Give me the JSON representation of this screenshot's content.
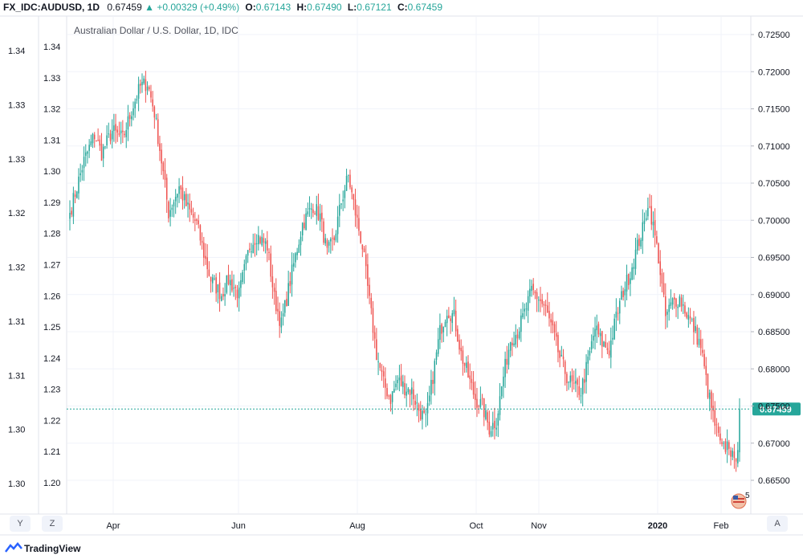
{
  "header": {
    "symbol": "FX_IDC:AUDUSD, 1D",
    "price": "0.67459",
    "change": "+0.00329 (+0.49%)",
    "open_label": "O:",
    "open": "0.67143",
    "high_label": "H:",
    "high": "0.67490",
    "low_label": "L:",
    "low": "0.67121",
    "close_label": "C:",
    "close": "0.67459"
  },
  "footer": {
    "brand": "TradingView",
    "y_button": "Y",
    "z_button": "Z",
    "a_button": "A",
    "flag_badge": "5"
  },
  "colors": {
    "up": "#26a69a",
    "down": "#ef5350",
    "price_line": "#26a69a"
  },
  "chart_data": {
    "type": "candlestick",
    "title": "Australian Dollar / U.S. Dollar, 1D, IDC",
    "last_price_label": "0.67459",
    "y_right": {
      "ticks": [
        "0.72500",
        "0.72000",
        "0.71500",
        "0.71000",
        "0.70500",
        "0.70000",
        "0.69500",
        "0.69000",
        "0.68500",
        "0.68000",
        "0.67500",
        "0.67000",
        "0.66500"
      ],
      "range": [
        0.6613,
        0.7265
      ]
    },
    "y_left_outer": {
      "ticks": [
        "1.34",
        "1.33",
        "1.33",
        "1.32",
        "1.32",
        "1.31",
        "1.31",
        "1.30",
        "1.30"
      ]
    },
    "y_left_inner": {
      "ticks": [
        "1.34",
        "1.33",
        "1.32",
        "1.31",
        "1.30",
        "1.29",
        "1.28",
        "1.27",
        "1.26",
        "1.25",
        "1.24",
        "1.23",
        "1.22",
        "1.21",
        "1.20"
      ]
    },
    "x_labels": [
      "Apr",
      "Jun",
      "Aug",
      "Oct",
      "Nov",
      "2020",
      "Feb"
    ],
    "key_points": [
      [
        0,
        0.701
      ],
      [
        8,
        0.708
      ],
      [
        14,
        0.7115
      ],
      [
        18,
        0.709
      ],
      [
        24,
        0.712
      ],
      [
        30,
        0.711
      ],
      [
        36,
        0.7155
      ],
      [
        40,
        0.718
      ],
      [
        44,
        0.7185
      ],
      [
        48,
        0.7145
      ],
      [
        52,
        0.708
      ],
      [
        56,
        0.701
      ],
      [
        62,
        0.7045
      ],
      [
        66,
        0.702
      ],
      [
        72,
        0.6995
      ],
      [
        76,
        0.6955
      ],
      [
        80,
        0.692
      ],
      [
        86,
        0.69
      ],
      [
        90,
        0.692
      ],
      [
        96,
        0.69
      ],
      [
        102,
        0.6965
      ],
      [
        106,
        0.698
      ],
      [
        112,
        0.6965
      ],
      [
        116,
        0.6895
      ],
      [
        120,
        0.686
      ],
      [
        126,
        0.693
      ],
      [
        132,
        0.6995
      ],
      [
        138,
        0.702
      ],
      [
        142,
        0.7005
      ],
      [
        146,
        0.6955
      ],
      [
        150,
        0.6975
      ],
      [
        154,
        0.7025
      ],
      [
        158,
        0.706
      ],
      [
        162,
        0.701
      ],
      [
        166,
        0.6965
      ],
      [
        170,
        0.689
      ],
      [
        174,
        0.682
      ],
      [
        178,
        0.678
      ],
      [
        182,
        0.676
      ],
      [
        186,
        0.6785
      ],
      [
        190,
        0.6775
      ],
      [
        194,
        0.677
      ],
      [
        198,
        0.6745
      ],
      [
        202,
        0.673
      ],
      [
        206,
        0.679
      ],
      [
        210,
        0.685
      ],
      [
        214,
        0.688
      ],
      [
        218,
        0.687
      ],
      [
        222,
        0.682
      ],
      [
        226,
        0.679
      ],
      [
        230,
        0.676
      ],
      [
        234,
        0.675
      ],
      [
        238,
        0.672
      ],
      [
        242,
        0.673
      ],
      [
        246,
        0.679
      ],
      [
        250,
        0.684
      ],
      [
        254,
        0.685
      ],
      [
        258,
        0.6875
      ],
      [
        262,
        0.6905
      ],
      [
        266,
        0.6895
      ],
      [
        270,
        0.688
      ],
      [
        274,
        0.685
      ],
      [
        278,
        0.6815
      ],
      [
        282,
        0.679
      ],
      [
        286,
        0.6775
      ],
      [
        290,
        0.677
      ],
      [
        294,
        0.681
      ],
      [
        298,
        0.6855
      ],
      [
        302,
        0.6835
      ],
      [
        306,
        0.6825
      ],
      [
        310,
        0.687
      ],
      [
        314,
        0.6905
      ],
      [
        318,
        0.693
      ],
      [
        322,
        0.6965
      ],
      [
        326,
        0.6995
      ],
      [
        328,
        0.7025
      ],
      [
        330,
        0.7005
      ],
      [
        334,
        0.695
      ],
      [
        338,
        0.687
      ],
      [
        342,
        0.689
      ],
      [
        346,
        0.6895
      ],
      [
        350,
        0.6875
      ],
      [
        354,
        0.6855
      ],
      [
        358,
        0.683
      ],
      [
        362,
        0.677
      ],
      [
        366,
        0.6725
      ],
      [
        370,
        0.669
      ],
      [
        374,
        0.67
      ],
      [
        377,
        0.667
      ],
      [
        380,
        0.6715
      ]
    ]
  }
}
